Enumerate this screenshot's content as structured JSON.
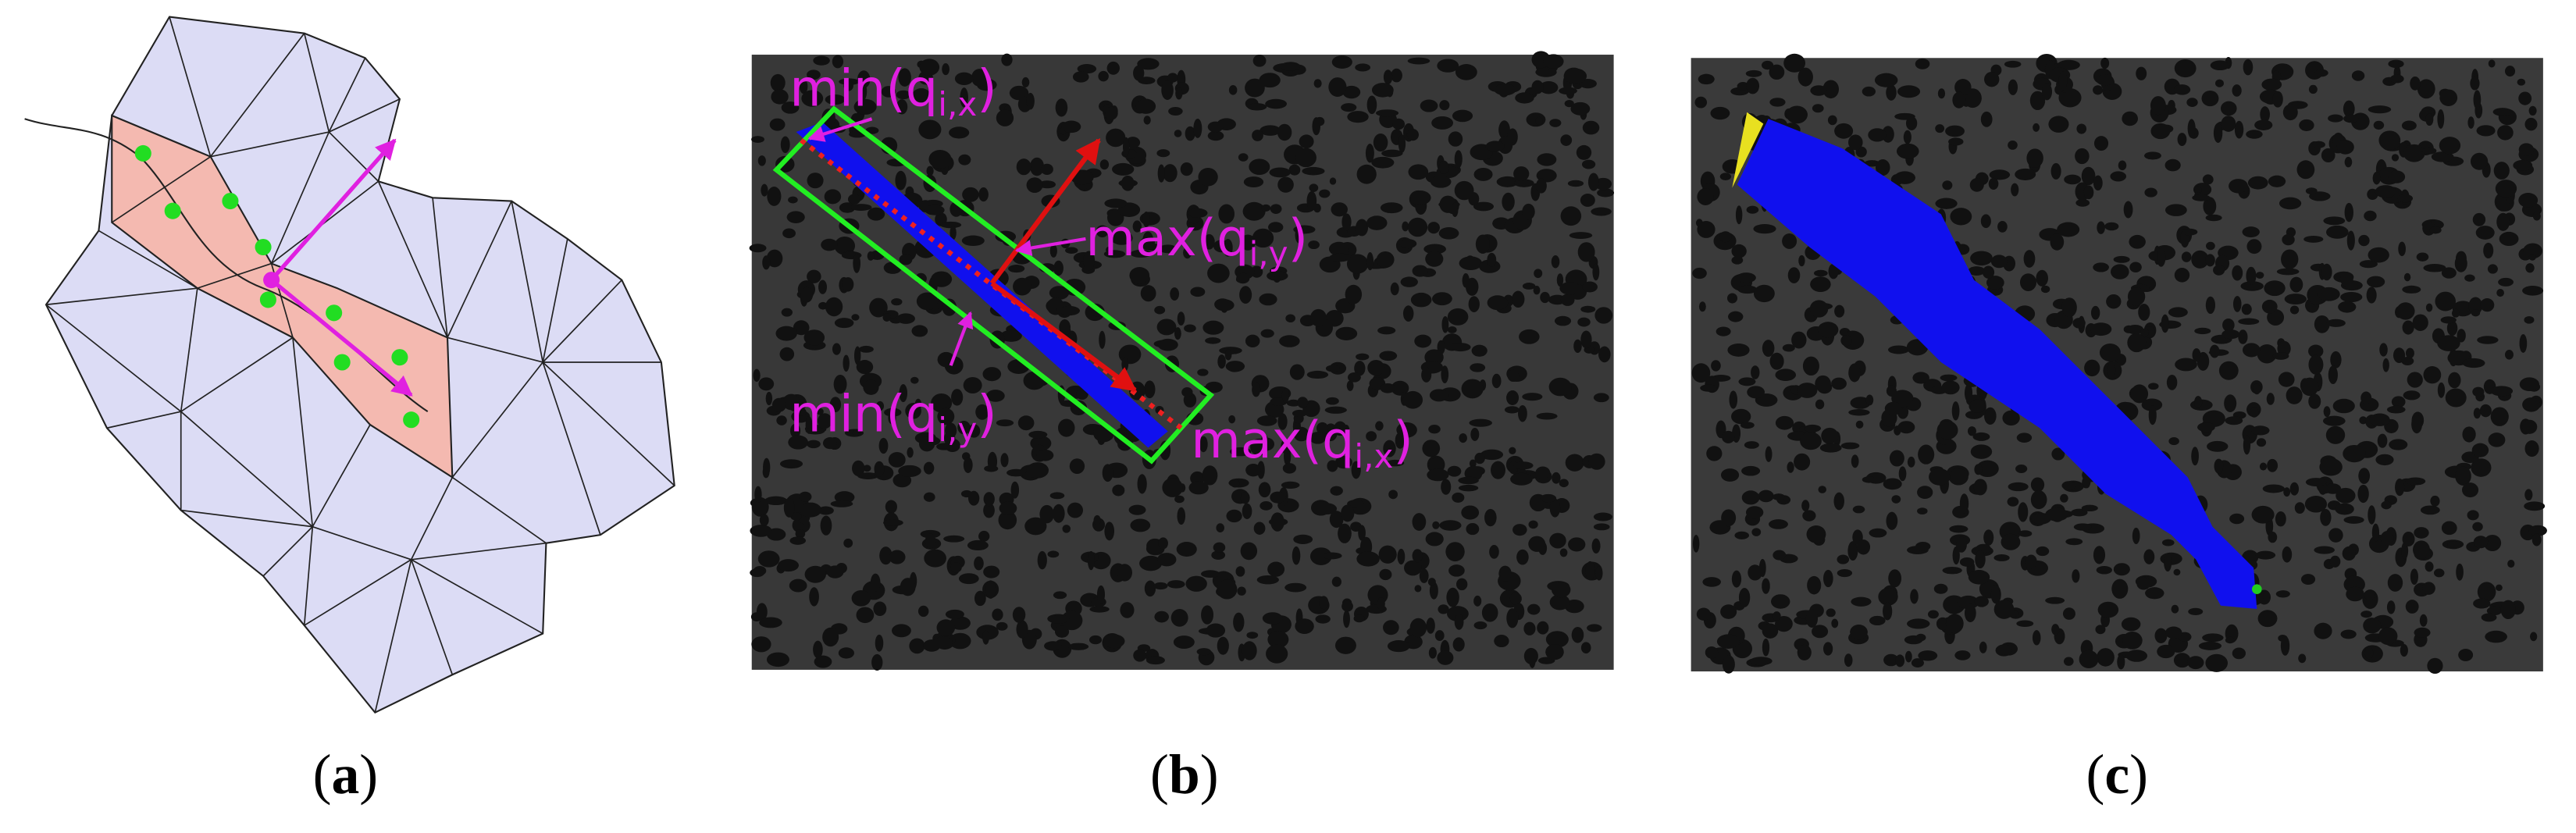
{
  "panels": [
    {
      "label": [
        "(",
        "a",
        ")"
      ]
    },
    {
      "label": [
        "(",
        "b",
        ")"
      ],
      "annotations": [
        {
          "text": "min(q",
          "sub": "i,x",
          "close": ")"
        },
        {
          "text": "max(q",
          "sub": "i,y",
          "close": ")"
        },
        {
          "text": "min(q",
          "sub": "i,y",
          "close": ")"
        },
        {
          "text": "max(q",
          "sub": "i,x",
          "close": ")"
        }
      ]
    },
    {
      "label": [
        "(",
        "c",
        ")"
      ]
    }
  ]
}
